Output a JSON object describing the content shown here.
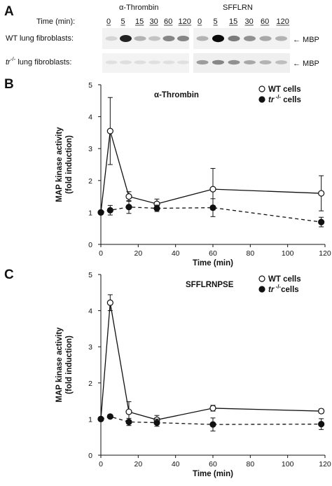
{
  "panels": {
    "a": "A",
    "b": "B",
    "c": "C"
  },
  "blot": {
    "time_label": "Time (min):",
    "group_titles": [
      "α-Thrombin",
      "SFFLRN"
    ],
    "timepoints": [
      "0",
      "5",
      "15",
      "30",
      "60",
      "120"
    ],
    "row_labels": [
      {
        "prefix": "WT",
        "suffix": " lung fibroblasts:"
      },
      {
        "prefix": "tr",
        "sup": "-/-",
        "suffix": " lung fibroblasts:"
      }
    ],
    "band_label": "← MBP",
    "band_intensity": {
      "wt_thrombin": [
        0.1,
        0.9,
        0.25,
        0.18,
        0.45,
        0.45
      ],
      "ko_thrombin": [
        0.05,
        0.06,
        0.06,
        0.05,
        0.05,
        0.05
      ],
      "wt_sfflrn": [
        0.25,
        1.0,
        0.5,
        0.4,
        0.3,
        0.25
      ],
      "ko_sfflrn": [
        0.35,
        0.45,
        0.4,
        0.3,
        0.25,
        0.2
      ]
    }
  },
  "chart_data": [
    {
      "type": "line",
      "title": "α-Thrombin",
      "xlabel": "Time (min)",
      "ylabel_lines": [
        "MAP kinase activity",
        "(fold  induction)"
      ],
      "xlim": [
        0,
        120
      ],
      "ylim": [
        0,
        5
      ],
      "xticks": [
        0,
        20,
        40,
        60,
        80,
        100,
        120
      ],
      "yticks": [
        0,
        1,
        2,
        3,
        4,
        5
      ],
      "legend_position": "top-right",
      "series": [
        {
          "name": "WT cells",
          "marker": "open-circle",
          "line": "solid",
          "x": [
            0,
            5,
            15,
            30,
            60,
            118
          ],
          "y": [
            1.0,
            3.55,
            1.5,
            1.27,
            1.73,
            1.6
          ],
          "err": [
            0,
            1.05,
            0.15,
            0.15,
            0.65,
            0.55
          ]
        },
        {
          "name_prefix": "tr",
          "name_sup": "-/-",
          "name_suffix": " cells",
          "marker": "filled-circle",
          "line": "dashed",
          "x": [
            0,
            5,
            15,
            30,
            60,
            118
          ],
          "y": [
            1.0,
            1.07,
            1.17,
            1.13,
            1.15,
            0.7
          ],
          "err": [
            0,
            0.15,
            0.2,
            0.1,
            0.28,
            0.15
          ]
        }
      ]
    },
    {
      "type": "line",
      "title": "SFFLRNPSE",
      "xlabel": "Time (min)",
      "ylabel_lines": [
        "MAP kinase activity",
        "(fold induction)"
      ],
      "xlim": [
        0,
        120
      ],
      "ylim": [
        0,
        5
      ],
      "xticks": [
        0,
        20,
        40,
        60,
        80,
        100,
        120
      ],
      "yticks": [
        0,
        1,
        2,
        3,
        4,
        5
      ],
      "legend_position": "top-right",
      "series": [
        {
          "name": "WT cells",
          "marker": "open-circle",
          "line": "solid",
          "x": [
            0,
            5,
            15,
            30,
            60,
            118
          ],
          "y": [
            1.0,
            4.22,
            1.2,
            0.98,
            1.3,
            1.22
          ],
          "err": [
            0,
            0.22,
            0.28,
            0.12,
            0.08,
            0.06
          ]
        },
        {
          "name_prefix": "tr",
          "name_sup": "-/-",
          "name_suffix": "cells",
          "marker": "filled-circle",
          "line": "dashed",
          "x": [
            0,
            5,
            15,
            30,
            60,
            118
          ],
          "y": [
            1.0,
            1.07,
            0.92,
            0.9,
            0.85,
            0.86
          ],
          "err": [
            0,
            0.04,
            0.1,
            0.1,
            0.18,
            0.15
          ]
        }
      ]
    }
  ]
}
